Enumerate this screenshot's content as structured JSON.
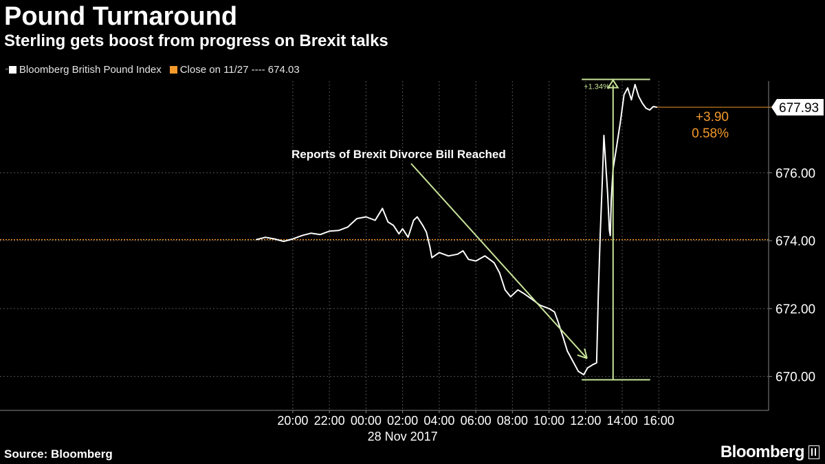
{
  "title": "Pound Turnaround",
  "subtitle": "Sterling gets boost from progress on Brexit talks",
  "legend": {
    "series_marker": "▫",
    "series_label": "Bloomberg British Pound Index",
    "close_label": "Close on 11/27 ---- 674.03"
  },
  "footer": {
    "source": "Source: Bloomberg",
    "brand": "Bloomberg"
  },
  "colors": {
    "background": "#000000",
    "series": "#ffffff",
    "close_line": "#f39a2b",
    "annotation": "#c9e59a",
    "grid": "#555555",
    "axis_text": "#ffffff"
  },
  "chart_data": {
    "type": "line",
    "title": "Pound Turnaround",
    "subtitle": "Sterling gets boost from progress on Brexit talks",
    "xlabel": "28 Nov 2017",
    "ylabel": "",
    "x_unit": "hours relative to 00:00 on 28 Nov 2017",
    "xlim": [
      -20.0,
      22.0
    ],
    "ylim": [
      669.0,
      678.7
    ],
    "x_ticks": [
      -4,
      -2,
      0,
      2,
      4,
      6,
      8,
      10,
      12,
      14,
      16
    ],
    "x_tick_labels": [
      "20:00",
      "22:00",
      "00:00",
      "02:00",
      "04:00",
      "06:00",
      "08:00",
      "10:00",
      "12:00",
      "14:00",
      "16:00"
    ],
    "y_ticks": [
      670,
      672,
      674,
      676
    ],
    "y_tick_labels": [
      "670.00",
      "672.00",
      "674.00",
      "676.00"
    ],
    "grid": true,
    "legend_position": "top-left",
    "series": [
      {
        "name": "Bloomberg British Pound Index",
        "x": [
          -6.0,
          -5.5,
          -5.0,
          -4.5,
          -4.0,
          -3.5,
          -3.0,
          -2.5,
          -2.0,
          -1.5,
          -1.0,
          -0.5,
          0.0,
          0.5,
          0.9,
          1.2,
          1.5,
          1.8,
          2.0,
          2.3,
          2.6,
          2.8,
          3.1,
          3.3,
          3.5,
          3.6,
          4.0,
          4.5,
          5.0,
          5.3,
          5.6,
          6.0,
          6.5,
          7.0,
          7.3,
          7.6,
          7.9,
          8.3,
          8.6,
          9.0,
          9.5,
          10.0,
          10.3,
          10.5,
          10.8,
          11.0,
          11.3,
          11.6,
          11.9,
          12.1,
          12.4,
          12.6,
          12.7,
          12.8,
          12.9,
          13.0,
          13.2,
          13.3,
          13.35,
          13.4,
          13.5,
          13.7,
          13.9,
          14.1,
          14.3,
          14.5,
          14.7,
          14.9,
          15.1,
          15.3,
          15.5,
          15.7,
          15.9
        ],
        "values": [
          674.03,
          674.1,
          674.05,
          673.98,
          674.05,
          674.15,
          674.22,
          674.18,
          674.28,
          674.3,
          674.4,
          674.65,
          674.7,
          674.6,
          674.95,
          674.55,
          674.45,
          674.2,
          674.35,
          674.1,
          674.6,
          674.7,
          674.45,
          674.25,
          673.8,
          673.5,
          673.65,
          673.55,
          673.6,
          673.7,
          673.45,
          673.4,
          673.55,
          673.35,
          673.05,
          672.55,
          672.35,
          672.55,
          672.45,
          672.3,
          672.1,
          672.0,
          671.9,
          671.6,
          671.1,
          670.75,
          670.45,
          670.15,
          670.05,
          670.25,
          670.35,
          670.4,
          672.5,
          674.2,
          675.6,
          677.1,
          675.4,
          674.3,
          674.15,
          675.2,
          676.1,
          676.8,
          677.5,
          678.3,
          678.5,
          678.15,
          678.6,
          678.25,
          678.05,
          677.9,
          677.85,
          677.95,
          677.93
        ]
      }
    ],
    "close_line": {
      "label": "Close on 11/27",
      "value": 674.03
    },
    "last_value_label": "677.93",
    "change_label": "+3.90",
    "change_pct_label": "0.58%",
    "annotations": [
      {
        "text": "Reports of Brexit Divorce Bill Reached",
        "arrow_to_x": 12.3,
        "arrow_to_y": 670.45
      },
      {
        "text": "+1.34%",
        "range_low": 669.9,
        "range_high": 678.75,
        "x_start": 11.9,
        "x_end": 15.0,
        "arrow_x": 13.5
      }
    ]
  }
}
